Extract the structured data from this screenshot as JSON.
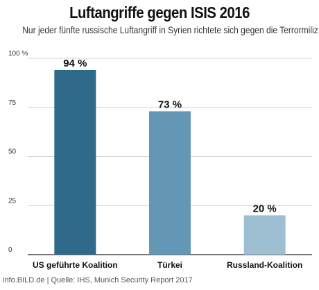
{
  "header": {
    "title": "Luftangriffe gegen ISIS 2016",
    "subtitle": "Nur jeder fünfte russische Luftangriff in Syrien richtete sich gegen die Terrormiliz"
  },
  "footer": {
    "source": "info.BILD.de | Quelle: IHS, Munich Security Report 2017"
  },
  "chart_data": {
    "type": "bar",
    "title": "Luftangriffe gegen ISIS 2016",
    "subtitle": "Nur jeder fünfte russische Luftangriff in Syrien richtete sich gegen die Terrormiliz",
    "categories": [
      "US geführte Koalition",
      "Türkei",
      "Russland-Koalition"
    ],
    "values": [
      94,
      73,
      20
    ],
    "value_labels": [
      "94 %",
      "73 %",
      "20 %"
    ],
    "colors": [
      "#2f6a8b",
      "#6497b6",
      "#9dbfd1"
    ],
    "yticks": [
      0,
      25,
      50,
      75,
      100
    ],
    "ytick_labels": [
      "0",
      "25",
      "50",
      "75",
      "100 %"
    ],
    "ylim": [
      0,
      100
    ],
    "xlabel": "",
    "ylabel": "",
    "grid": true,
    "legend": "none"
  }
}
